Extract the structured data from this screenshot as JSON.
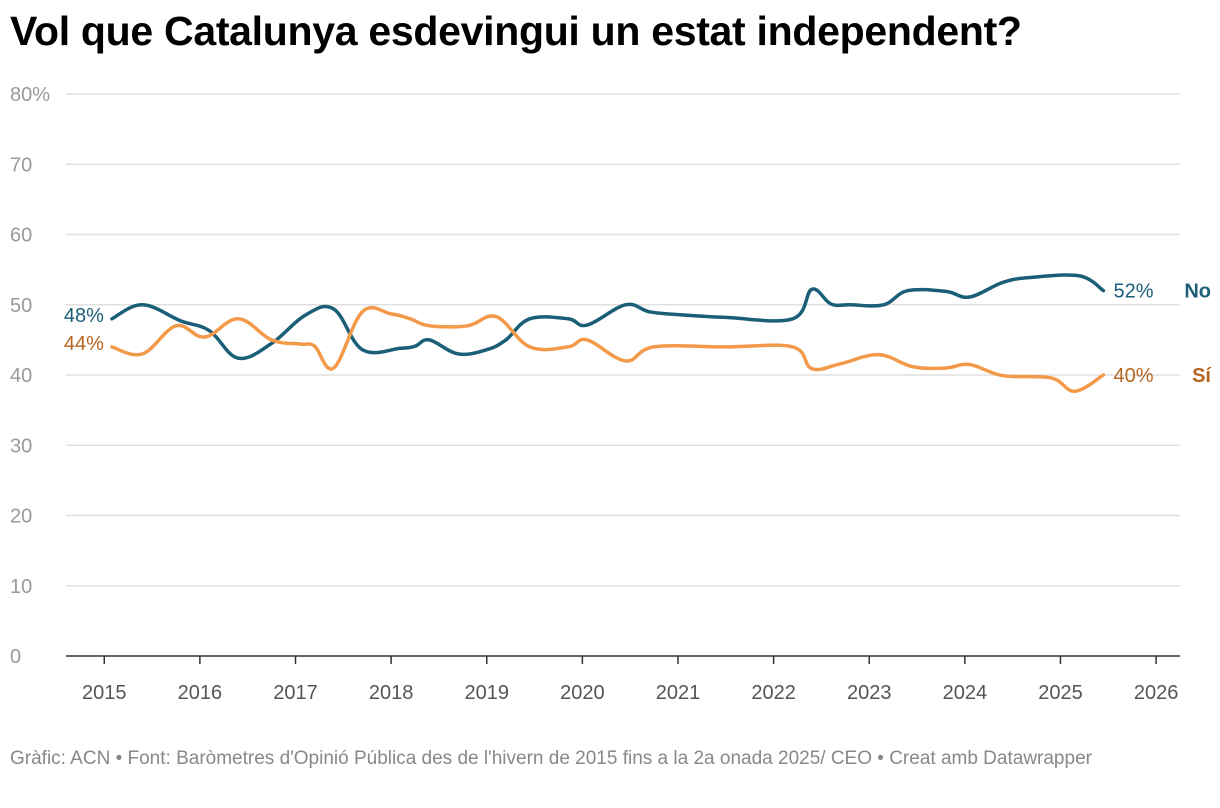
{
  "title": "Vol que Catalunya esdevingui un estat independent?",
  "footer": "Gràfic: ACN • Font: Baròmetres d'Opinió Pública des de l'hivern de 2015 fins a la 2a onada 2025/ CEO • Creat amb Datawrapper",
  "colors": {
    "no": "#1b5e78",
    "si": "#f2994a",
    "si_text": "#b5651d",
    "grid": "#e0e0e0",
    "axis": "#333333"
  },
  "chart_data": {
    "type": "line",
    "title": "Vol que Catalunya esdevingui un estat independent?",
    "xlabel": "",
    "ylabel": "",
    "xlim": [
      2014.6,
      2026.25
    ],
    "ylim": [
      0,
      80
    ],
    "y_ticks": [
      0,
      10,
      20,
      30,
      40,
      50,
      60,
      70,
      80
    ],
    "y_tick_labels": [
      "0",
      "10",
      "20",
      "30",
      "40",
      "50",
      "60",
      "70",
      "80%"
    ],
    "x_ticks": [
      2015,
      2016,
      2017,
      2018,
      2019,
      2020,
      2021,
      2022,
      2023,
      2024,
      2025,
      2026
    ],
    "x_tick_labels": [
      "2015",
      "2016",
      "2017",
      "2018",
      "2019",
      "2020",
      "2021",
      "2022",
      "2023",
      "2024",
      "2025",
      "2026"
    ],
    "grid": true,
    "series": [
      {
        "name": "No",
        "color": "#1b5e78",
        "start_label": "48%",
        "end_label": "52%",
        "points": [
          [
            2015.08,
            48.0
          ],
          [
            2015.4,
            50.0
          ],
          [
            2015.8,
            47.7
          ],
          [
            2016.1,
            46.3
          ],
          [
            2016.4,
            42.4
          ],
          [
            2016.75,
            44.5
          ],
          [
            2017.1,
            48.5
          ],
          [
            2017.4,
            49.4
          ],
          [
            2017.7,
            43.6
          ],
          [
            2018.1,
            43.8
          ],
          [
            2018.25,
            44.1
          ],
          [
            2018.4,
            45.0
          ],
          [
            2018.7,
            43.0
          ],
          [
            2019.0,
            43.6
          ],
          [
            2019.2,
            45.0
          ],
          [
            2019.45,
            48.0
          ],
          [
            2019.85,
            48.0
          ],
          [
            2020.05,
            47.1
          ],
          [
            2020.45,
            50.0
          ],
          [
            2020.7,
            49.0
          ],
          [
            2021.0,
            48.6
          ],
          [
            2021.5,
            48.2
          ],
          [
            2022.2,
            48.0
          ],
          [
            2022.4,
            52.2
          ],
          [
            2022.6,
            50.1
          ],
          [
            2022.8,
            50.0
          ],
          [
            2023.15,
            50.0
          ],
          [
            2023.4,
            52.0
          ],
          [
            2023.8,
            51.9
          ],
          [
            2024.05,
            51.1
          ],
          [
            2024.4,
            53.2
          ],
          [
            2024.7,
            53.9
          ],
          [
            2025.2,
            54.1
          ],
          [
            2025.45,
            52.0
          ]
        ]
      },
      {
        "name": "Sí",
        "color": "#f2994a",
        "start_label": "44%",
        "end_label": "40%",
        "points": [
          [
            2015.08,
            44.0
          ],
          [
            2015.4,
            43.0
          ],
          [
            2015.75,
            47.0
          ],
          [
            2016.05,
            45.4
          ],
          [
            2016.4,
            48.0
          ],
          [
            2016.75,
            45.0
          ],
          [
            2017.05,
            44.4
          ],
          [
            2017.2,
            44.1
          ],
          [
            2017.4,
            41.0
          ],
          [
            2017.7,
            49.0
          ],
          [
            2018.0,
            48.7
          ],
          [
            2018.2,
            48.0
          ],
          [
            2018.4,
            47.0
          ],
          [
            2018.8,
            47.0
          ],
          [
            2019.1,
            48.3
          ],
          [
            2019.45,
            44.0
          ],
          [
            2019.85,
            44.0
          ],
          [
            2020.05,
            45.0
          ],
          [
            2020.45,
            42.0
          ],
          [
            2020.75,
            44.0
          ],
          [
            2021.5,
            44.0
          ],
          [
            2022.2,
            44.0
          ],
          [
            2022.4,
            40.9
          ],
          [
            2022.7,
            41.6
          ],
          [
            2023.1,
            42.9
          ],
          [
            2023.45,
            41.2
          ],
          [
            2023.8,
            41.0
          ],
          [
            2024.05,
            41.5
          ],
          [
            2024.4,
            39.9
          ],
          [
            2024.9,
            39.6
          ],
          [
            2025.15,
            37.7
          ],
          [
            2025.45,
            40.0
          ]
        ]
      }
    ]
  }
}
